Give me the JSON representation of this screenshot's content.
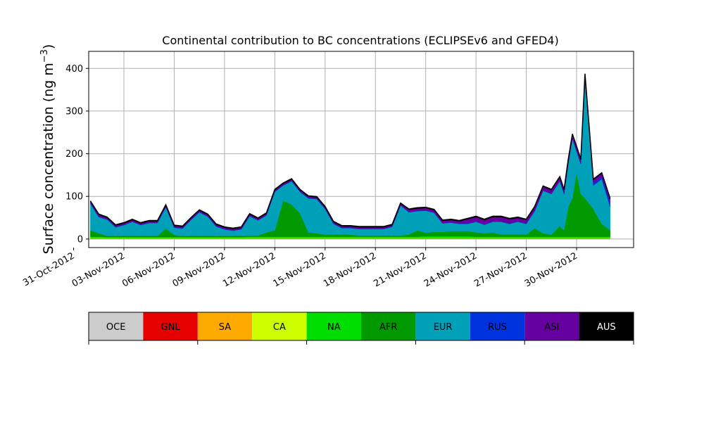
{
  "chart_data": {
    "type": "area",
    "title": "Continental contribution to BC concentrations (ECLIPSEv6 and GFED4)",
    "ylabel": "Surface concentration (ng m",
    "ylabel_sup": "−3",
    "ylabel_close": ")",
    "xlabel": "",
    "ylim": [
      -20,
      440
    ],
    "yticks": [
      0,
      100,
      200,
      300,
      400
    ],
    "xlim_days": [
      -0.1,
      32.4
    ],
    "grid": true,
    "x_start_date": "2012-11-01",
    "xticks": [
      {
        "day": -1,
        "label": "31-Oct-2012"
      },
      {
        "day": 2,
        "label": "03-Nov-2012"
      },
      {
        "day": 5,
        "label": "06-Nov-2012"
      },
      {
        "day": 8,
        "label": "09-Nov-2012"
      },
      {
        "day": 11,
        "label": "12-Nov-2012"
      },
      {
        "day": 14,
        "label": "15-Nov-2012"
      },
      {
        "day": 17,
        "label": "18-Nov-2012"
      },
      {
        "day": 20,
        "label": "21-Nov-2012"
      },
      {
        "day": 23,
        "label": "24-Nov-2012"
      },
      {
        "day": 26,
        "label": "27-Nov-2012"
      },
      {
        "day": 29,
        "label": "30-Nov-2012"
      }
    ],
    "x": [
      0.0,
      0.5,
      1.0,
      1.5,
      2.0,
      2.5,
      3.0,
      3.5,
      4.0,
      4.5,
      5.0,
      5.5,
      6.0,
      6.5,
      7.0,
      7.5,
      8.0,
      8.5,
      9.0,
      9.5,
      10.0,
      10.5,
      11.0,
      11.5,
      12.0,
      12.5,
      13.0,
      13.5,
      14.0,
      14.5,
      15.0,
      15.5,
      16.0,
      16.5,
      17.0,
      17.5,
      18.0,
      18.5,
      19.0,
      19.5,
      20.0,
      20.5,
      21.0,
      21.5,
      22.0,
      22.5,
      23.0,
      23.5,
      24.0,
      24.5,
      25.0,
      25.5,
      26.0,
      26.5,
      27.0,
      27.5,
      28.0,
      28.25,
      28.5,
      28.75,
      29.0,
      29.25,
      29.5,
      30.0,
      30.5,
      31.0
    ],
    "series": [
      {
        "name": "OCE",
        "color": "#cccccc",
        "values": [
          0.5,
          0.5,
          0.5,
          0.5,
          0.5,
          0.5,
          0.5,
          0.5,
          0.5,
          0.5,
          0.5,
          0.5,
          0.5,
          0.5,
          0.5,
          0.5,
          0.5,
          0.5,
          0.5,
          0.5,
          0.5,
          0.5,
          0.5,
          0.5,
          0.5,
          0.5,
          0.5,
          0.5,
          0.5,
          0.5,
          0.5,
          0.5,
          0.5,
          0.5,
          0.5,
          0.5,
          0.5,
          0.5,
          0.5,
          0.5,
          0.5,
          0.5,
          0.5,
          0.5,
          0.5,
          0.5,
          0.5,
          0.5,
          0.5,
          0.5,
          0.5,
          0.5,
          0.5,
          0.5,
          0.5,
          0.5,
          0.5,
          0.5,
          0.5,
          0.5,
          0.5,
          0.5,
          0.5,
          0.5,
          0.5,
          0.5
        ]
      },
      {
        "name": "GNL",
        "color": "#e60000",
        "values": [
          0.5,
          0.5,
          0.5,
          0.5,
          0.5,
          0.5,
          0.5,
          0.5,
          0.5,
          0.5,
          0.5,
          0.5,
          0.5,
          0.5,
          0.5,
          0.5,
          0.5,
          0.5,
          0.5,
          0.5,
          0.5,
          0.5,
          0.5,
          0.5,
          0.5,
          0.5,
          0.5,
          0.5,
          0.5,
          0.5,
          0.5,
          0.5,
          0.5,
          0.5,
          0.5,
          0.5,
          0.5,
          0.5,
          0.5,
          0.5,
          0.5,
          0.5,
          0.5,
          0.5,
          0.5,
          0.5,
          0.5,
          0.5,
          0.5,
          0.5,
          0.5,
          0.5,
          0.5,
          0.5,
          0.5,
          0.5,
          0.5,
          0.5,
          0.5,
          0.5,
          0.5,
          0.5,
          0.5,
          0.5,
          0.5,
          0.5
        ]
      },
      {
        "name": "SA",
        "color": "#ffaa00",
        "values": [
          0.5,
          0.5,
          0.5,
          0.5,
          0.5,
          0.5,
          0.5,
          0.5,
          0.5,
          0.5,
          0.5,
          0.5,
          0.5,
          0.5,
          0.5,
          0.5,
          0.5,
          0.5,
          0.5,
          0.5,
          0.5,
          0.5,
          0.5,
          0.5,
          0.5,
          0.5,
          0.5,
          0.5,
          0.5,
          0.5,
          0.5,
          0.5,
          0.5,
          0.5,
          0.5,
          0.5,
          0.5,
          0.5,
          0.5,
          0.5,
          0.5,
          0.5,
          0.5,
          0.5,
          0.5,
          0.5,
          0.5,
          0.5,
          0.5,
          0.5,
          0.5,
          0.5,
          0.5,
          0.5,
          0.5,
          0.5,
          0.5,
          0.5,
          0.5,
          0.5,
          0.5,
          0.5,
          0.5,
          0.5,
          0.5,
          0.5
        ]
      },
      {
        "name": "CA",
        "color": "#ccff00",
        "values": [
          1,
          1,
          1,
          1,
          1,
          1,
          1,
          1,
          1,
          1,
          1,
          1,
          1,
          1,
          1,
          1,
          1,
          1,
          1,
          1,
          1,
          1,
          1,
          1,
          1,
          1,
          1,
          1,
          1,
          1,
          1,
          1,
          1,
          1,
          1,
          1,
          1,
          1,
          1,
          1,
          1,
          1,
          1,
          1,
          1,
          1,
          1,
          1,
          1,
          1,
          1,
          1,
          1,
          1,
          1,
          1,
          1,
          1,
          1,
          1,
          1,
          1,
          1,
          1,
          1,
          1
        ]
      },
      {
        "name": "NA",
        "color": "#00dd00",
        "values": [
          3,
          3,
          2,
          2,
          2,
          2,
          2,
          2,
          2,
          2,
          2,
          2,
          2,
          2,
          2,
          2,
          2,
          2,
          2,
          3,
          3,
          3,
          3,
          3,
          3,
          3,
          3,
          3,
          3,
          3,
          3,
          3,
          3,
          3,
          3,
          3,
          3,
          3,
          3,
          3,
          4,
          4,
          4,
          4,
          4,
          4,
          3,
          3,
          3,
          3,
          3,
          3,
          3,
          3,
          3,
          3,
          3,
          3,
          3,
          3,
          3,
          3,
          3,
          3,
          3,
          3
        ]
      },
      {
        "name": "AFR",
        "color": "#009900",
        "values": [
          15,
          8,
          3,
          3,
          3,
          3,
          3,
          3,
          3,
          20,
          5,
          3,
          3,
          3,
          3,
          3,
          3,
          3,
          3,
          3,
          3,
          10,
          15,
          85,
          75,
          55,
          10,
          8,
          5,
          5,
          5,
          5,
          3,
          3,
          3,
          3,
          3,
          3,
          5,
          15,
          8,
          10,
          10,
          12,
          12,
          12,
          10,
          8,
          10,
          5,
          5,
          5,
          5,
          20,
          8,
          5,
          25,
          15,
          70,
          90,
          150,
          100,
          90,
          65,
          30,
          15
        ]
      },
      {
        "name": "EUR",
        "color": "#00a0b8",
        "values": [
          62,
          38,
          38,
          20,
          25,
          33,
          25,
          30,
          30,
          50,
          17,
          17,
          37,
          55,
          45,
          22,
          15,
          12,
          15,
          45,
          35,
          40,
          90,
          35,
          55,
          50,
          80,
          80,
          60,
          25,
          15,
          15,
          15,
          15,
          15,
          15,
          20,
          70,
          52,
          45,
          52,
          45,
          20,
          20,
          17,
          17,
          25,
          20,
          25,
          30,
          25,
          30,
          25,
          40,
          100,
          95,
          105,
          85,
          100,
          140,
          50,
          70,
          280,
          55,
          105,
          55
        ]
      },
      {
        "name": "RUS",
        "color": "#0033dd",
        "values": [
          2,
          1,
          1,
          1,
          1,
          1,
          1,
          1,
          1,
          1,
          1,
          1,
          1,
          1,
          1,
          1,
          1,
          1,
          1,
          1,
          1,
          1,
          1,
          1,
          1,
          1,
          1,
          1,
          1,
          1,
          1,
          1,
          1,
          1,
          1,
          1,
          1,
          1,
          1,
          1,
          1,
          1,
          1,
          1,
          1,
          1,
          1,
          1,
          1,
          1,
          1,
          1,
          1,
          1,
          1,
          1,
          1,
          1,
          1,
          1,
          2,
          2,
          2,
          5,
          5,
          10
        ]
      },
      {
        "name": "ASI",
        "color": "#6600a0",
        "values": [
          3,
          4,
          3,
          3,
          3,
          3,
          3,
          3,
          3,
          3,
          3,
          3,
          3,
          3,
          3,
          3,
          3,
          3,
          3,
          3,
          3,
          3,
          3,
          3,
          3,
          3,
          3,
          3,
          3,
          3,
          3,
          3,
          3,
          3,
          3,
          3,
          3,
          3,
          5,
          5,
          5,
          5,
          5,
          5,
          5,
          10,
          10,
          10,
          10,
          10,
          10,
          8,
          8,
          8,
          8,
          8,
          8,
          8,
          8,
          8,
          8,
          8,
          8,
          8,
          8,
          8
        ]
      },
      {
        "name": "AUS",
        "color": "#000000",
        "values": [
          2,
          2,
          2,
          2,
          2,
          2,
          2,
          2,
          2,
          2,
          2,
          2,
          2,
          2,
          2,
          2,
          2,
          2,
          2,
          2,
          2,
          2,
          2,
          2,
          2,
          2,
          2,
          2,
          2,
          2,
          2,
          2,
          2,
          2,
          2,
          2,
          2,
          2,
          2,
          2,
          2,
          2,
          2,
          2,
          2,
          2,
          2,
          2,
          2,
          2,
          2,
          2,
          2,
          2,
          2,
          2,
          2,
          2,
          2,
          2,
          2,
          2,
          2,
          2,
          2,
          2
        ]
      }
    ],
    "legend": {
      "placement": "bottom",
      "entries": [
        "OCE",
        "GNL",
        "SA",
        "CA",
        "NA",
        "AFR",
        "EUR",
        "RUS",
        "ASI",
        "AUS"
      ],
      "text_colors": [
        "#000000",
        "#000000",
        "#000000",
        "#000000",
        "#000000",
        "#000000",
        "#000000",
        "#000000",
        "#000000",
        "#ffffff"
      ]
    }
  }
}
